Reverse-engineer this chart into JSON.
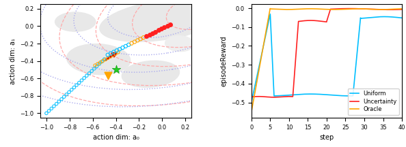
{
  "left_xlim": [
    -1.05,
    0.25
  ],
  "left_ylim": [
    -1.05,
    0.25
  ],
  "left_xlabel": "action dim: a₀",
  "left_ylabel": "action dim: a₁",
  "right_xlabel": "step",
  "right_ylabel": "episodeReward",
  "right_xlim": [
    0,
    40
  ],
  "right_ylim": [
    -0.58,
    0.02
  ],
  "right_yticks": [
    0.0,
    -0.1,
    -0.2,
    -0.3,
    -0.4,
    -0.5
  ],
  "right_xticks": [
    0,
    5,
    10,
    15,
    20,
    25,
    30,
    35,
    40
  ],
  "legend_labels": [
    "Uniform",
    "Uncertainty",
    "Oracle"
  ],
  "uniform_color": "#00bfff",
  "uncertainty_color": "#ff2020",
  "oracle_color": "#ffa500",
  "red_ellipse_color": "#ffaaaa",
  "blue_ellipse_color": "#aaaaee",
  "world_color": "#e8e8e8"
}
